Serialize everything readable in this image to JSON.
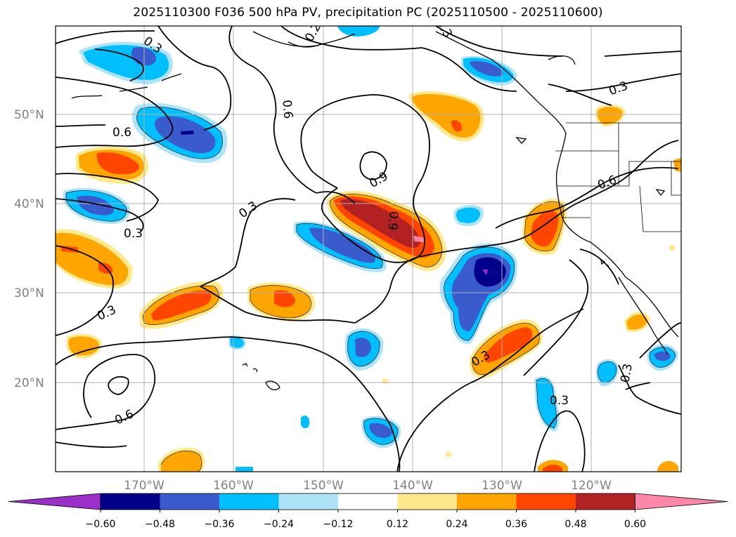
{
  "title": "2025110300 F036 500 hPa PV, precipitation PC (2025110500 - 2025110600)",
  "map": {
    "lat_labels": [
      "50°N",
      "40°N",
      "30°N",
      "20°N"
    ],
    "lon_labels": [
      "170°W",
      "160°W",
      "150°W",
      "140°W",
      "130°W",
      "120°W"
    ],
    "contour_labels": [
      "0.3",
      "0.6",
      "0.3",
      "0.3",
      "0.6",
      "0.9",
      "0.9",
      "0.3",
      "0.6",
      "0.3",
      "0.3",
      "0.6",
      "0.3",
      "0.3",
      "0.3",
      "0.2"
    ]
  },
  "colorbar": {
    "ticks": [
      "−0.60",
      "−0.48",
      "−0.36",
      "−0.24",
      "−0.12",
      "0.12",
      "0.24",
      "0.36",
      "0.48",
      "0.60"
    ],
    "colors": [
      "#9b30c8",
      "#00008b",
      "#3a5bcc",
      "#00bfff",
      "#aee3f9",
      "#ffffff",
      "#ffe98a",
      "#ffa500",
      "#ff4500",
      "#b22222",
      "#ff88aa"
    ]
  }
}
